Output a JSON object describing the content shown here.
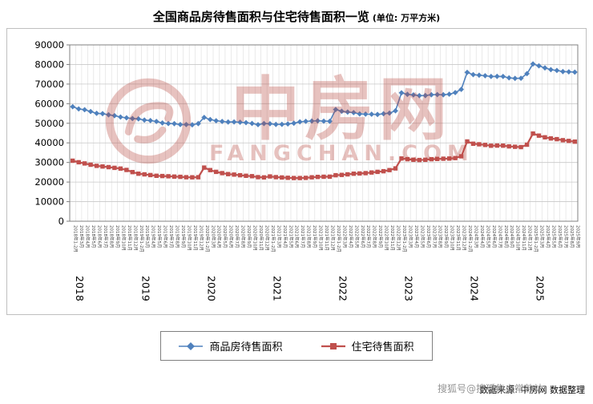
{
  "title": {
    "main": "全国商品房待售面积与住宅待售面积一览",
    "unit": "(单位: 万平方米)"
  },
  "watermark": {
    "text": "中房网",
    "subtext": "FANGCHAN.COM",
    "color": "#b8433c"
  },
  "source": {
    "prefix": "数据来源: 中房网",
    "suffix": "数据整理",
    "overlay": "搜狐号@搜狐焦点常熟站"
  },
  "chart_data": {
    "type": "line",
    "title": "全国商品房待售面积与住宅待售面积一览",
    "ylabel": "万平方米",
    "ylim": [
      0,
      90000
    ],
    "ytick": 10000,
    "grid": true,
    "legend_position": "bottom",
    "x": [
      "2018年1-2月",
      "2018年3月",
      "2018年4月",
      "2018年5月",
      "2018年6月",
      "2018年7月",
      "2018年8月",
      "2018年9月",
      "2018年10月",
      "2018年11月",
      "2018年12月",
      "2019年1-2月",
      "2019年3月",
      "2019年4月",
      "2019年5月",
      "2019年6月",
      "2019年7月",
      "2019年8月",
      "2019年9月",
      "2019年10月",
      "2019年11月",
      "2019年12月",
      "2020年1-2月",
      "2020年3月",
      "2020年4月",
      "2020年5月",
      "2020年6月",
      "2020年7月",
      "2020年8月",
      "2020年9月",
      "2020年10月",
      "2020年11月",
      "2020年12月",
      "2021年1-2月",
      "2021年3月",
      "2021年4月",
      "2021年5月",
      "2021年6月",
      "2021年7月",
      "2021年8月",
      "2021年9月",
      "2021年10月",
      "2021年11月",
      "2021年12月",
      "2022年1-2月",
      "2022年3月",
      "2022年4月",
      "2022年5月",
      "2022年6月",
      "2022年7月",
      "2022年8月",
      "2022年9月",
      "2022年10月",
      "2022年11月",
      "2022年12月",
      "2023年1-2月",
      "2023年3月",
      "2023年4月",
      "2023年5月",
      "2023年6月",
      "2023年7月",
      "2023年8月",
      "2023年9月",
      "2023年10月",
      "2023年11月",
      "2023年12月",
      "2024年1-2月",
      "2024年3月",
      "2024年4月",
      "2024年5月",
      "2024年6月",
      "2024年7月",
      "2024年8月",
      "2024年9月",
      "2024年10月",
      "2024年11月",
      "2024年12月",
      "2025年1-2月",
      "2025年3月",
      "2025年4月",
      "2025年5月",
      "2025年6月",
      "2025年7月",
      "2025年8月",
      "2025年9月"
    ],
    "year_labels": [
      {
        "label": "2018",
        "index": 0
      },
      {
        "label": "2019",
        "index": 11
      },
      {
        "label": "2020",
        "index": 22
      },
      {
        "label": "2021",
        "index": 33
      },
      {
        "label": "2022",
        "index": 44
      },
      {
        "label": "2023",
        "index": 55
      },
      {
        "label": "2024",
        "index": 66
      },
      {
        "label": "2025",
        "index": 77
      }
    ],
    "series": [
      {
        "name": "商品房待售面积",
        "color": "#4F81BD",
        "marker": "diamond",
        "width": 1.6,
        "values": [
          58468,
          57329,
          56898,
          56010,
          55083,
          54891,
          54328,
          53873,
          53191,
          52789,
          52414,
          52251,
          51646,
          51380,
          50928,
          50162,
          49876,
          49784,
          49346,
          49323,
          49221,
          49821,
          52976,
          51899,
          51312,
          50928,
          50662,
          50682,
          50512,
          50316,
          49922,
          49287,
          49850,
          49738,
          49416,
          49472,
          49664,
          50014,
          50738,
          50968,
          51136,
          51278,
          51091,
          51023,
          57026,
          56113,
          55735,
          55433,
          54784,
          54655,
          54605,
          54494,
          54874,
          55203,
          56366,
          65528,
          64770,
          64487,
          64120,
          64159,
          64564,
          64621,
          64537,
          64835,
          65642,
          67295,
          75969,
          74833,
          74553,
          74256,
          73894,
          73926,
          73871,
          73177,
          72909,
          72967,
          75327,
          80254,
          79315,
          78241,
          77357,
          76948,
          76386,
          76264,
          76081
        ]
      },
      {
        "name": "住宅待售面积",
        "color": "#C0504D",
        "marker": "square",
        "width": 2.2,
        "values": [
          30906,
          30090,
          29483,
          28844,
          28260,
          27954,
          27610,
          27259,
          26869,
          26184,
          25091,
          24273,
          23930,
          23571,
          23206,
          23093,
          22942,
          22780,
          22660,
          22461,
          22412,
          22473,
          27349,
          26094,
          25212,
          24543,
          24041,
          23804,
          23490,
          23208,
          22984,
          22514,
          22379,
          22854,
          22490,
          22340,
          22184,
          22032,
          22067,
          22148,
          22418,
          22629,
          22698,
          22761,
          23468,
          23662,
          23946,
          24240,
          24366,
          24550,
          24892,
          25195,
          25508,
          26093,
          26947,
          32041,
          31648,
          31359,
          31263,
          31365,
          31662,
          31792,
          31892,
          31984,
          32244,
          33119,
          40710,
          39568,
          39266,
          38936,
          38544,
          38625,
          38564,
          38228,
          38021,
          37843,
          39088,
          44764,
          43678,
          42839,
          42272,
          41893,
          41357,
          40972,
          40604
        ]
      }
    ]
  }
}
